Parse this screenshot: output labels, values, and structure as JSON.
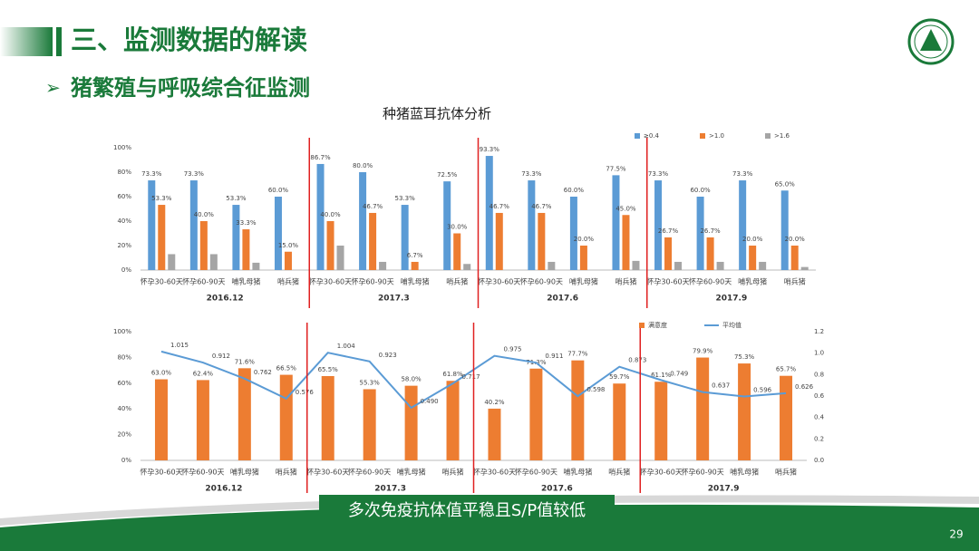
{
  "slide": {
    "title": "三、监测数据的解读",
    "subtitle": "猪繁殖与呼吸综合征监测",
    "callout": "多次免疫抗体值平稳且S/P值较低",
    "page": "29"
  },
  "chart_data": [
    {
      "type": "bar",
      "title": "种猪蓝耳抗体分析",
      "legend": "top-right",
      "grid": false,
      "categories": [
        "怀孕30-60天",
        "怀孕60-90天",
        "哺乳母猪",
        "哨兵猪",
        "怀孕30-60天",
        "怀孕60-90天",
        "哺乳母猪",
        "哨兵猪",
        "怀孕30-60天",
        "怀孕60-90天",
        "哺乳母猪",
        "哨兵猪",
        "怀孕30-60天",
        "怀孕60-90天",
        "哺乳母猪",
        "哨兵猪"
      ],
      "groups": [
        "2016.12",
        "2017.3",
        "2017.6",
        "2017.9"
      ],
      "ylim": [
        0,
        100
      ],
      "yticks": [
        {
          "value": 0,
          "label": "0%"
        },
        {
          "value": 20,
          "label": "20%"
        },
        {
          "value": 40,
          "label": "40%"
        },
        {
          "value": 60,
          "label": "60%"
        },
        {
          "value": 80,
          "label": "80%"
        },
        {
          "value": 100,
          "label": "100%"
        }
      ],
      "series": [
        {
          "name": "≥0.4",
          "color": "#5b9bd5",
          "values": [
            73.3,
            73.3,
            53.3,
            60.0,
            86.7,
            80.0,
            53.3,
            72.5,
            93.3,
            73.3,
            60.0,
            77.5,
            73.3,
            60.0,
            73.3,
            65.0
          ],
          "value_labels": [
            "73.3%",
            "73.3%",
            "53.3%",
            "60.0%",
            "86.7%",
            "80.0%",
            "53.3%",
            "72.5%",
            "93.3%",
            "73.3%",
            "60.0%",
            "77.5%",
            "73.3%",
            "60.0%",
            "73.3%",
            "65.0%"
          ]
        },
        {
          "name": ">1.0",
          "color": "#ed7d31",
          "values": [
            53.3,
            40.0,
            33.3,
            15.0,
            40.0,
            46.7,
            6.7,
            30.0,
            46.7,
            46.7,
            20.0,
            45.0,
            26.7,
            26.7,
            20.0,
            20.0
          ],
          "value_labels": [
            "53.3%",
            "40.0%",
            "33.3%",
            "15.0%",
            "40.0%",
            "46.7%",
            "6.7%",
            "30.0%",
            "46.7%",
            "46.7%",
            "20.0%",
            "45.0%",
            "26.7%",
            "26.7%",
            "20.0%",
            "20.0%"
          ]
        },
        {
          "name": ">1.6",
          "color": "#a5a5a5",
          "values": [
            13,
            13,
            6,
            0,
            20,
            6.7,
            0,
            5,
            0,
            6.7,
            0,
            7.5,
            6.7,
            6.7,
            6.7,
            2.5
          ]
        }
      ]
    },
    {
      "type": "bar",
      "legend": "top-right",
      "grid": false,
      "categories": [
        "怀孕30-60天",
        "怀孕60-90天",
        "哺乳母猪",
        "哨兵猪",
        "怀孕30-60天",
        "怀孕60-90天",
        "哺乳母猪",
        "哨兵猪",
        "怀孕30-60天",
        "怀孕60-90天",
        "哺乳母猪",
        "哨兵猪",
        "怀孕30-60天",
        "怀孕60-90天",
        "哺乳母猪",
        "哨兵猪"
      ],
      "groups": [
        "2016.12",
        "2017.3",
        "2017.6",
        "2017.9"
      ],
      "ylim": [
        0,
        100
      ],
      "yticks": [
        {
          "value": 0,
          "label": "0%"
        },
        {
          "value": 20,
          "label": "20%"
        },
        {
          "value": 40,
          "label": "40%"
        },
        {
          "value": 60,
          "label": "60%"
        },
        {
          "value": 80,
          "label": "80%"
        },
        {
          "value": 100,
          "label": "100%"
        }
      ],
      "y2lim": [
        0,
        1.2
      ],
      "y2ticks": [
        {
          "value": 0,
          "label": "0.0"
        },
        0.2,
        0.4,
        0.6,
        0.8,
        {
          "value": 1,
          "label": "1.0"
        },
        1.2
      ],
      "series": [
        {
          "name": "满意度",
          "color": "#ed7d31",
          "values": [
            63.0,
            62.4,
            71.6,
            66.5,
            65.5,
            55.3,
            58.0,
            61.8,
            40.2,
            71.3,
            77.7,
            59.7,
            61.1,
            79.9,
            75.3,
            65.7
          ],
          "value_labels": [
            "63.0%",
            "62.4%",
            "71.6%",
            "66.5%",
            "65.5%",
            "55.3%",
            "58.0%",
            "61.8%",
            "40.2%",
            "71.3%",
            "77.7%",
            "59.7%",
            "61.1%",
            "79.9%",
            "75.3%",
            "65.7%"
          ]
        },
        {
          "name": "平均值",
          "color": "#5b9bd5",
          "type": "line",
          "axis": "y2",
          "values": [
            1.015,
            0.912,
            0.762,
            0.576,
            1.004,
            0.923,
            0.49,
            0.717,
            0.975,
            0.911,
            0.598,
            0.873,
            0.749,
            0.637,
            0.596,
            0.626
          ],
          "value_labels": [
            "1.015",
            "0.912",
            "0.762",
            "0.576",
            "1.004",
            "0.923",
            "0.490",
            "0.717",
            "0.975",
            "0.911",
            "0.598",
            "0.873",
            "0.749",
            "0.637",
            "0.596",
            "0.626"
          ]
        }
      ]
    }
  ]
}
